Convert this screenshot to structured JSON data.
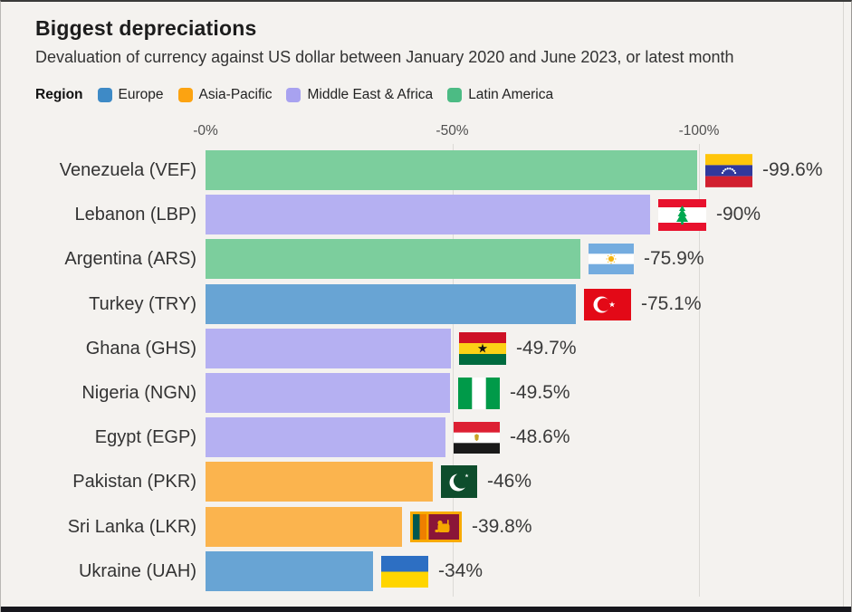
{
  "page": {
    "background": "#F4F2EF",
    "bottom_bar_color": "#17171D"
  },
  "header": {
    "title": "Biggest depreciations",
    "subtitle": "Devaluation of currency against US dollar between January 2020 and June 2023, or latest month"
  },
  "legend": {
    "label": "Region",
    "items": [
      {
        "name": "Europe",
        "color": "#3E8AC6"
      },
      {
        "name": "Asia-Pacific",
        "color": "#FCA311"
      },
      {
        "name": "Middle East & Africa",
        "color": "#A8A2F0"
      },
      {
        "name": "Latin America",
        "color": "#4CBB84"
      }
    ]
  },
  "region_bar_colors": {
    "Europe": "#68A4D4",
    "Asia-Pacific": "#FBB44E",
    "Middle East & Africa": "#B5B0F2",
    "Latin America": "#7CCE9D"
  },
  "chart_data": {
    "type": "bar",
    "orientation": "horizontal",
    "title": "Biggest depreciations",
    "subtitle": "Devaluation of currency against US dollar between January 2020 and June 2023, or latest month",
    "categories": [
      "Venezuela (VEF)",
      "Lebanon (LBP)",
      "Argentina (ARS)",
      "Turkey (TRY)",
      "Ghana (GHS)",
      "Nigeria (NGN)",
      "Egypt (EGP)",
      "Pakistan (PKR)",
      "Sri Lanka (LKR)",
      "Ukraine (UAH)"
    ],
    "values": [
      -99.6,
      -90,
      -75.9,
      -75.1,
      -49.7,
      -49.5,
      -48.6,
      -46,
      -39.8,
      -34
    ],
    "value_labels": [
      "-99.6%",
      "-90%",
      "-75.9%",
      "-75.1%",
      "-49.7%",
      "-49.5%",
      "-48.6%",
      "-46%",
      "-39.8%",
      "-34%"
    ],
    "regions": [
      "Latin America",
      "Middle East & Africa",
      "Latin America",
      "Europe",
      "Middle East & Africa",
      "Middle East & Africa",
      "Middle East & Africa",
      "Asia-Pacific",
      "Asia-Pacific",
      "Europe"
    ],
    "flags": [
      "venezuela",
      "lebanon",
      "argentina",
      "turkey",
      "ghana",
      "nigeria",
      "egypt",
      "pakistan",
      "sri-lanka",
      "ukraine"
    ],
    "xlabel": "",
    "ylabel": "",
    "xlim": [
      0,
      -100
    ],
    "axis_ticks": [
      {
        "label": "-0%",
        "value": 0
      },
      {
        "label": "-50%",
        "value": 50
      },
      {
        "label": "-100%",
        "value": 100
      }
    ],
    "gridline_values": [
      50,
      100
    ],
    "legend_position": "top",
    "grid": "vertical"
  }
}
